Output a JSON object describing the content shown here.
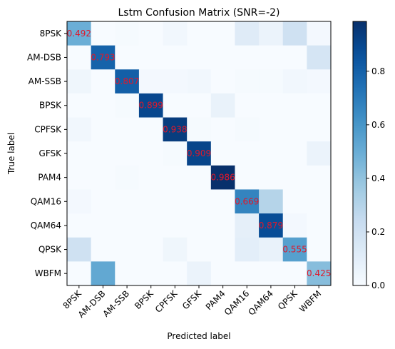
{
  "chart_data": {
    "type": "heatmap",
    "title": "Lstm Confusion Matrix (SNR=-2)",
    "xlabel": "Predicted label",
    "ylabel": "True label",
    "categories": [
      "8PSK",
      "AM-DSB",
      "AM-SSB",
      "BPSK",
      "CPFSK",
      "GFSK",
      "PAM4",
      "QAM16",
      "QAM64",
      "QPSK",
      "WBFM"
    ],
    "matrix": [
      [
        0.492,
        0.0,
        0.01,
        0.0,
        0.03,
        0.0,
        0.0,
        0.12,
        0.06,
        0.2,
        0.02
      ],
      [
        0.0,
        0.793,
        0.0,
        0.0,
        0.0,
        0.0,
        0.0,
        0.0,
        0.0,
        0.0,
        0.17
      ],
      [
        0.04,
        0.0,
        0.807,
        0.02,
        0.02,
        0.03,
        0.0,
        0.01,
        0.01,
        0.03,
        0.02
      ],
      [
        0.0,
        0.0,
        0.01,
        0.899,
        0.0,
        0.0,
        0.07,
        0.0,
        0.0,
        0.0,
        0.0
      ],
      [
        0.03,
        0.0,
        0.0,
        0.0,
        0.938,
        0.01,
        0.0,
        0.01,
        0.0,
        0.0,
        0.0
      ],
      [
        0.0,
        0.0,
        0.0,
        0.0,
        0.01,
        0.909,
        0.0,
        0.0,
        0.0,
        0.0,
        0.06
      ],
      [
        0.0,
        0.0,
        0.01,
        0.0,
        0.0,
        0.0,
        0.986,
        0.0,
        0.0,
        0.0,
        0.0
      ],
      [
        0.02,
        0.0,
        0.0,
        0.0,
        0.0,
        0.0,
        0.0,
        0.669,
        0.3,
        0.0,
        0.0
      ],
      [
        0.0,
        0.0,
        0.0,
        0.0,
        0.0,
        0.0,
        0.0,
        0.09,
        0.879,
        0.02,
        0.0
      ],
      [
        0.2,
        0.0,
        0.0,
        0.0,
        0.04,
        0.0,
        0.0,
        0.1,
        0.07,
        0.555,
        0.0
      ],
      [
        0.0,
        0.52,
        0.0,
        0.0,
        0.0,
        0.06,
        0.0,
        0.0,
        0.0,
        0.0,
        0.425
      ]
    ],
    "diagonal_labels": [
      "0.492",
      "0.793",
      "0.807",
      "0.899",
      "0.938",
      "0.909",
      "0.986",
      "0.669",
      "0.879",
      "0.555",
      "0.425"
    ],
    "colorbar": {
      "min": 0.0,
      "max": 0.986,
      "ticks": [
        0.0,
        0.2,
        0.4,
        0.6,
        0.8
      ],
      "tick_labels": [
        "0.0",
        "0.2",
        "0.4",
        "0.6",
        "0.8"
      ]
    },
    "colormap": "Blues",
    "annotation_color": "#e0182a"
  }
}
